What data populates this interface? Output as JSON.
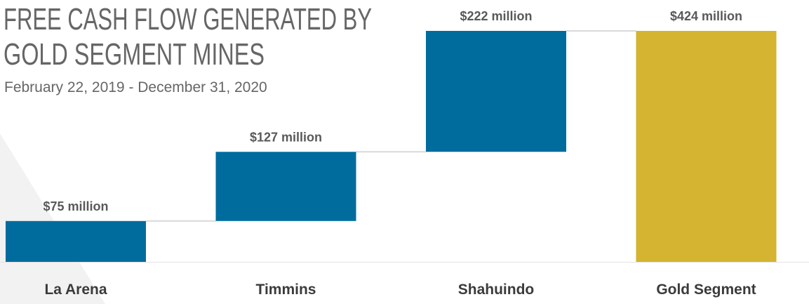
{
  "chart_data": {
    "type": "waterfall",
    "title": [
      "FREE CASH FLOW GENERATED BY",
      "GOLD SEGMENT MINES"
    ],
    "subtitle": "February 22, 2019 - December 31, 2020",
    "categories": [
      "La Arena",
      "Timmins",
      "Shahuindo",
      "Gold Segment"
    ],
    "values": [
      75,
      127,
      222,
      424
    ],
    "value_labels": [
      "$75 million",
      "$127 million",
      "$222 million",
      "$424 million"
    ],
    "colors": [
      "#006c9e",
      "#006c9e",
      "#006c9e",
      "#d4b430"
    ]
  }
}
